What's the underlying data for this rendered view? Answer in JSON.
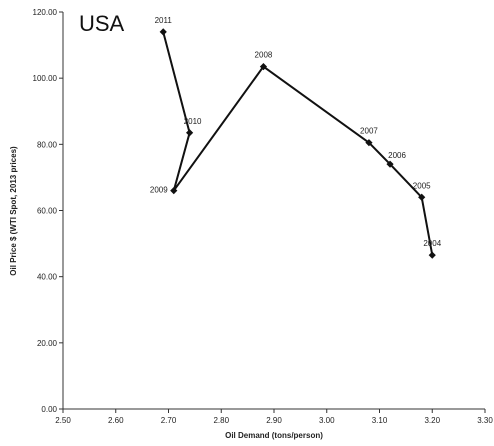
{
  "chart_data": {
    "type": "scatter",
    "title": "USA",
    "xlabel": "Oil Demand (tons/person)",
    "ylabel": "Oil Price $ (WTI Spot, 2013 prices)",
    "xlim": [
      2.5,
      3.3
    ],
    "ylim": [
      0,
      120
    ],
    "x_ticks": [
      "2.50",
      "2.60",
      "2.70",
      "2.80",
      "2.90",
      "3.00",
      "3.10",
      "3.20",
      "3.30"
    ],
    "y_ticks": [
      "0.00",
      "20.00",
      "40.00",
      "60.00",
      "80.00",
      "100.00",
      "120.00"
    ],
    "grid": false,
    "series": [
      {
        "connected": true,
        "marker": "diamond",
        "color": "#111111",
        "points": [
          {
            "label": "2004",
            "x": 3.2,
            "y": 46.5
          },
          {
            "label": "2005",
            "x": 3.18,
            "y": 64.0
          },
          {
            "label": "2006",
            "x": 3.12,
            "y": 74.0
          },
          {
            "label": "2007",
            "x": 3.08,
            "y": 80.5
          },
          {
            "label": "2008",
            "x": 2.88,
            "y": 103.5
          },
          {
            "label": "2009",
            "x": 2.71,
            "y": 66.0
          },
          {
            "label": "2010",
            "x": 2.74,
            "y": 83.5
          },
          {
            "label": "2011",
            "x": 2.69,
            "y": 114.0
          }
        ]
      }
    ]
  }
}
